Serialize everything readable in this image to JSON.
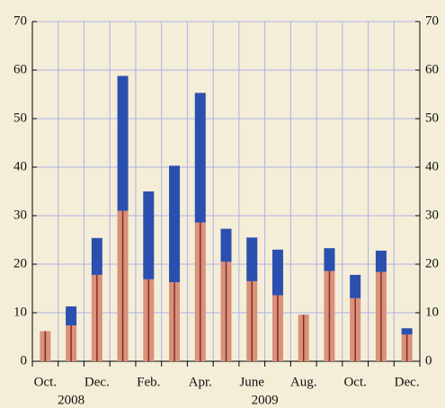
{
  "chart_data": {
    "type": "stacked_bar",
    "categories": [
      "Oct.",
      null,
      "Dec.",
      null,
      "Feb.",
      null,
      "Apr.",
      null,
      "June",
      null,
      "Aug.",
      null,
      "Oct.",
      null,
      "Dec."
    ],
    "year_labels": [
      "2008",
      "2009"
    ],
    "series": [
      {
        "color": "#d8927c",
        "values": [
          6.2,
          7.4,
          17.8,
          31,
          16.9,
          16.3,
          28.6,
          20.5,
          16.5,
          13.6,
          9.6,
          18.6,
          13,
          18.4,
          5.5
        ]
      },
      {
        "color": "#2b4fae",
        "values": [
          0,
          3.9,
          7.6,
          27.8,
          18.1,
          24,
          26.7,
          6.8,
          9,
          9.4,
          0,
          4.7,
          4.8,
          4.4,
          1.3
        ]
      }
    ],
    "ylim": [
      0,
      70
    ],
    "yticks": [
      0,
      10,
      20,
      30,
      40,
      50,
      60,
      70
    ],
    "grid": true
  }
}
